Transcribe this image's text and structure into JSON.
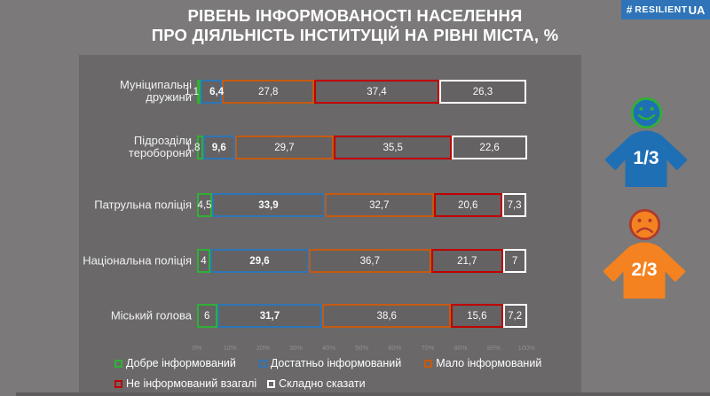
{
  "title": {
    "line1": "РІВЕНЬ ІНФОРМОВАНОСТІ  НАСЕЛЕННЯ",
    "line2": "ПРО ДІЯЛЬНІСТЬ ІНСТИТУЦІЙ  НА РІВНІ МІСТА, %"
  },
  "badge": {
    "hash": "#",
    "text": "RESILIENT",
    "suffix": "UA",
    "bg": "#2f74b8"
  },
  "chart_data": {
    "type": "bar",
    "orientation": "horizontal",
    "stacked": true,
    "title": "РІВЕНЬ ІНФОРМОВАНОСТІ НАСЕЛЕННЯ ПРО ДІЯЛЬНІСТЬ ІНСТИТУЦІЙ НА РІВНІ МІСТА, %",
    "categories": [
      "Муніципальні дружини",
      "Підрозділи тероборони",
      "Патрульна поліція",
      "Національна поліція",
      "Міський голова"
    ],
    "series": [
      {
        "name": "Добре інформований",
        "color": "#2eb135",
        "bold": false,
        "values": [
          1.1,
          1.8,
          4.5,
          4,
          6
        ]
      },
      {
        "name": "Достатньо інформований",
        "color": "#2e75b6",
        "bold": true,
        "values": [
          6.4,
          9.6,
          33.9,
          29.6,
          31.7
        ]
      },
      {
        "name": "Мало інформований",
        "color": "#c55a11",
        "bold": false,
        "values": [
          27.8,
          29.7,
          32.7,
          36.7,
          38.6
        ]
      },
      {
        "name": "Не інформований взагалі",
        "color": "#c00000",
        "bold": false,
        "values": [
          37.4,
          35.5,
          20.6,
          21.7,
          15.6
        ]
      },
      {
        "name": "Складно сказати",
        "color": "#ffffff",
        "bold": false,
        "values": [
          26.3,
          22.6,
          7.3,
          7,
          7.2
        ]
      }
    ],
    "x_axis": {
      "range": [
        0,
        100
      ],
      "ticks": [
        "0%",
        "10%",
        "20%",
        "30%",
        "40%",
        "50%",
        "60%",
        "70%",
        "80%",
        "90%",
        "100%"
      ]
    },
    "legend_rows": [
      [
        0,
        1,
        2
      ],
      [
        3,
        4
      ]
    ],
    "grid": false,
    "legend_position": "bottom"
  },
  "infographic": {
    "happy": {
      "fraction": "1/3",
      "torso_color": "#1f6fb5",
      "face_fill": "#1f6fb5",
      "face_ring": "#2eb135"
    },
    "sad": {
      "fraction": "2/3",
      "torso_color": "#f58220",
      "face_fill": "#f58220",
      "face_ring": "#b03a2e"
    }
  },
  "colors": {
    "background": "#7b7979",
    "panel": "#6a6868",
    "title_text": "#ffffff",
    "value_text": "#fafafa"
  }
}
